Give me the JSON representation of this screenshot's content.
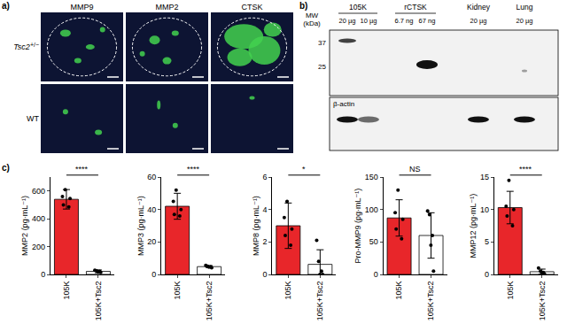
{
  "panels": {
    "a": {
      "label": "a)",
      "columns": [
        "MMP9",
        "MMP2",
        "CTSK"
      ],
      "rows": [
        {
          "text": "Tsc2",
          "superscript": "+/−"
        },
        {
          "text": "WT"
        }
      ]
    },
    "b": {
      "label": "b)",
      "mw_label": [
        "MW",
        "(kDa)"
      ],
      "groups": [
        {
          "name": "105K",
          "lanes": [
            "20 µg",
            "10 µg"
          ]
        },
        {
          "name": "rCTSK",
          "lanes": [
            "6.7 ng",
            "67 ng"
          ]
        },
        {
          "name": "Kidney",
          "lanes": [
            "20 µg"
          ]
        },
        {
          "name": "Lung",
          "lanes": [
            "20 µg"
          ]
        }
      ],
      "markers": [
        37,
        25
      ],
      "loading_control": "β-actin"
    },
    "c": {
      "label": "c)"
    }
  },
  "chart_data": [
    {
      "type": "bar",
      "categories": [
        "105K",
        "105K+Tsc2"
      ],
      "values": [
        540,
        22
      ],
      "errors": [
        70,
        10
      ],
      "points": [
        [
          610,
          560,
          545,
          500,
          485
        ],
        [
          30,
          25,
          22,
          18,
          15
        ]
      ],
      "colors": [
        "#e8262a",
        "#ffffff"
      ],
      "ylabel": "MMP2 (pg·mL⁻¹)",
      "ylim": [
        0,
        700
      ],
      "yticks": [
        0,
        200,
        400,
        600
      ],
      "significance": "****"
    },
    {
      "type": "bar",
      "categories": [
        "105K",
        "105K+Tsc2"
      ],
      "values": [
        42,
        4.8
      ],
      "errors": [
        8,
        0.6
      ],
      "points": [
        [
          52,
          45,
          40,
          37,
          36
        ],
        [
          5.6,
          5,
          4.8,
          4.5,
          4.1
        ]
      ],
      "colors": [
        "#e8262a",
        "#ffffff"
      ],
      "ylabel": "MMP3 (pg·mL⁻¹)",
      "ylim": [
        0,
        60
      ],
      "yticks": [
        0,
        20,
        40,
        60
      ],
      "significance": "****"
    },
    {
      "type": "bar",
      "categories": [
        "105K",
        "105K+Tsc2"
      ],
      "values": [
        3.0,
        0.62
      ],
      "errors": [
        1.4,
        0.9
      ],
      "points": [
        [
          4.5,
          3.5,
          2.8,
          2.4,
          1.8
        ],
        [
          2.1,
          0.8,
          0.2,
          0,
          0
        ]
      ],
      "colors": [
        "#e8262a",
        "#ffffff"
      ],
      "ylabel": "MMP8 (pg·mL⁻¹)",
      "ylim": [
        0,
        6
      ],
      "yticks": [
        0,
        2,
        4,
        6
      ],
      "significance": "*"
    },
    {
      "type": "bar",
      "categories": [
        "105K",
        "105K+Tsc2"
      ],
      "values": [
        87,
        60
      ],
      "errors": [
        28,
        35
      ],
      "points": [
        [
          130,
          95,
          85,
          70,
          55
        ],
        [
          98,
          92,
          60,
          45,
          5
        ]
      ],
      "colors": [
        "#e8262a",
        "#ffffff"
      ],
      "ylabel": "Pro-MMP9 (pg·mL⁻¹)",
      "ylim": [
        0,
        150
      ],
      "yticks": [
        0,
        50,
        100,
        150
      ],
      "significance": "NS"
    },
    {
      "type": "bar",
      "categories": [
        "105K",
        "105K+Tsc2"
      ],
      "values": [
        10.3,
        0.42
      ],
      "errors": [
        2.5,
        0.4
      ],
      "points": [
        [
          14.5,
          10.5,
          10,
          9,
          7.5
        ],
        [
          1.0,
          0.5,
          0.3,
          0.2,
          0.1
        ]
      ],
      "colors": [
        "#e8262a",
        "#ffffff"
      ],
      "ylabel": "MMP12 (pg·mL⁻¹)",
      "ylim": [
        0,
        15
      ],
      "yticks": [
        0,
        5,
        10,
        15
      ],
      "significance": "****"
    }
  ]
}
